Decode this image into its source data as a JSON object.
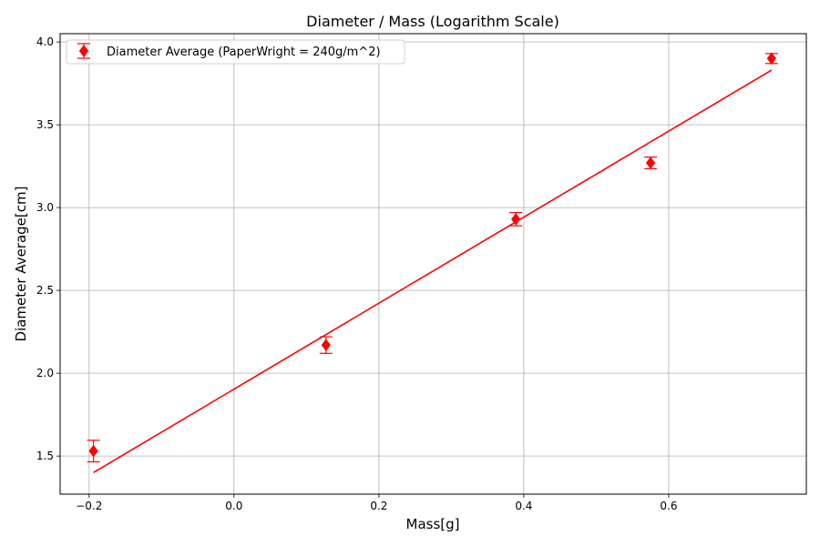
{
  "chart_data": {
    "type": "scatter",
    "title": "Diameter / Mass (Logarithm Scale)",
    "xlabel": "Mass[g]",
    "ylabel": "Diameter Average[cm]",
    "xlim": [
      -0.24,
      0.79
    ],
    "ylim": [
      1.27,
      4.05
    ],
    "x_ticks": [
      -0.2,
      0.0,
      0.2,
      0.4,
      0.6
    ],
    "x_tick_labels": [
      "−0.2",
      "0.0",
      "0.2",
      "0.4",
      "0.6"
    ],
    "y_ticks": [
      1.5,
      2.0,
      2.5,
      3.0,
      3.5,
      4.0
    ],
    "y_tick_labels": [
      "1.5",
      "2.0",
      "2.5",
      "3.0",
      "3.5",
      "4.0"
    ],
    "grid": true,
    "legend_position": "top-left",
    "series": [
      {
        "name": "Diameter Average (PaperWright = 240g/m^2)",
        "kind": "errorbar",
        "marker": "diamond",
        "color": "#ff0000",
        "x": [
          -0.194,
          0.127,
          0.389,
          0.575,
          0.742
        ],
        "y": [
          1.53,
          2.17,
          2.93,
          3.27,
          3.9
        ],
        "yerr": [
          0.065,
          0.05,
          0.04,
          0.035,
          0.03
        ]
      },
      {
        "kind": "fit-line",
        "color": "#ff0000",
        "x": [
          -0.194,
          0.742
        ],
        "y": [
          1.4,
          3.83
        ]
      }
    ]
  }
}
